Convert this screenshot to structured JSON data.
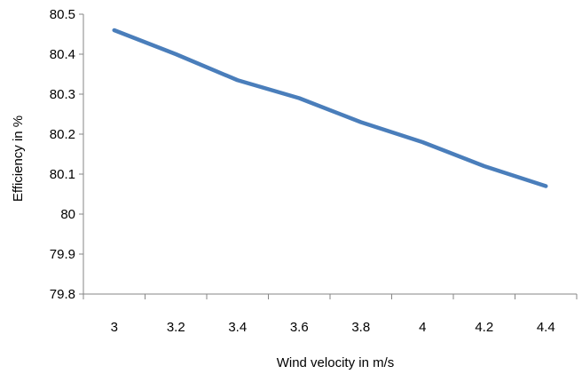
{
  "chart_data": {
    "type": "line",
    "title": "",
    "xlabel": "Wind velocity in m/s",
    "ylabel": "Efficiency in %",
    "x": [
      3,
      3.2,
      3.4,
      3.6,
      3.8,
      4,
      4.2,
      4.4
    ],
    "x_tick_labels": [
      "3",
      "3.2",
      "3.4",
      "3.6",
      "3.8",
      "4",
      "4.2",
      "4.4"
    ],
    "y_tick_labels": [
      "79.8",
      "79.9",
      "80",
      "80.1",
      "80.2",
      "80.3",
      "80.4",
      "80.5"
    ],
    "y_ticks": [
      79.8,
      79.9,
      80.0,
      80.1,
      80.2,
      80.3,
      80.4,
      80.5
    ],
    "ylim": [
      79.8,
      80.5
    ],
    "grid": false,
    "legend": false,
    "series": [
      {
        "values": [
          80.46,
          80.4,
          80.335,
          80.29,
          80.23,
          80.18,
          80.12,
          80.07
        ],
        "color": "#4a7ebb"
      }
    ],
    "axis_color": "#868686"
  }
}
